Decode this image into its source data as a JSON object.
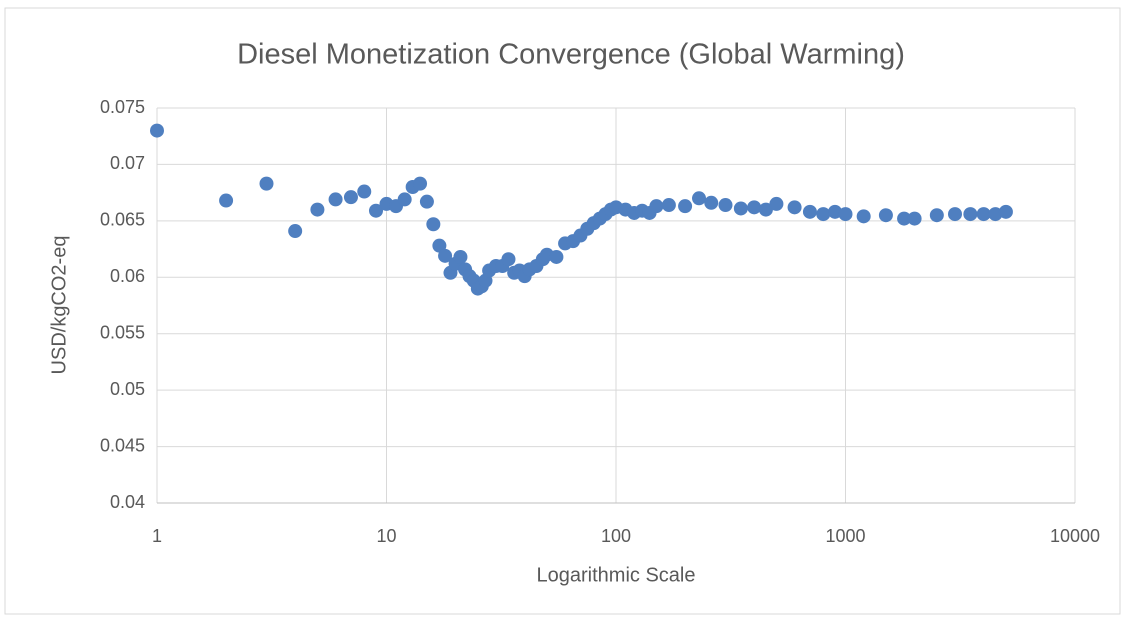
{
  "chart_data": {
    "type": "scatter",
    "title": "Diesel Monetization Convergence (Global Warming)",
    "x_label": "Logarithmic Scale",
    "y_label": "USD/kgCO2-eq",
    "xscale": "log",
    "grid": true,
    "color": "#4f7fc0",
    "xlim": [
      1,
      10000
    ],
    "xticks": [
      1,
      10,
      100,
      1000,
      10000
    ],
    "ylim": [
      0.04,
      0.075
    ],
    "yticks": [
      0.04,
      0.045,
      0.05,
      0.055,
      0.06,
      0.065,
      0.07,
      0.075
    ],
    "x": [
      1,
      2,
      3,
      4,
      5,
      6,
      7,
      8,
      9,
      10,
      11,
      12,
      13,
      14,
      15,
      16,
      17,
      18,
      19,
      20,
      21,
      22,
      23,
      24,
      25,
      26,
      27,
      28,
      30,
      32,
      34,
      36,
      38,
      40,
      42,
      45,
      48,
      50,
      55,
      60,
      65,
      70,
      75,
      80,
      85,
      90,
      95,
      100,
      110,
      120,
      130,
      140,
      150,
      170,
      200,
      230,
      260,
      300,
      350,
      400,
      450,
      500,
      600,
      700,
      800,
      900,
      1000,
      1200,
      1500,
      1800,
      2000,
      2500,
      3000,
      3500,
      4000,
      4500,
      5000
    ],
    "values": [
      0.073,
      0.0668,
      0.0683,
      0.0641,
      0.066,
      0.0669,
      0.0671,
      0.0676,
      0.0659,
      0.0665,
      0.0663,
      0.0669,
      0.068,
      0.0683,
      0.0667,
      0.0647,
      0.0628,
      0.0619,
      0.0604,
      0.0612,
      0.0618,
      0.0607,
      0.0601,
      0.0597,
      0.059,
      0.0592,
      0.0597,
      0.0606,
      0.061,
      0.061,
      0.0616,
      0.0604,
      0.0606,
      0.0601,
      0.0607,
      0.061,
      0.0616,
      0.062,
      0.0618,
      0.063,
      0.0632,
      0.0637,
      0.0643,
      0.0648,
      0.0652,
      0.0656,
      0.066,
      0.0662,
      0.066,
      0.0657,
      0.0659,
      0.0657,
      0.0663,
      0.0664,
      0.0663,
      0.067,
      0.0666,
      0.0664,
      0.0661,
      0.0662,
      0.066,
      0.0665,
      0.0662,
      0.0658,
      0.0656,
      0.0658,
      0.0656,
      0.0654,
      0.0655,
      0.0652,
      0.0652,
      0.0655,
      0.0656,
      0.0656,
      0.0656,
      0.0656,
      0.0658
    ]
  }
}
